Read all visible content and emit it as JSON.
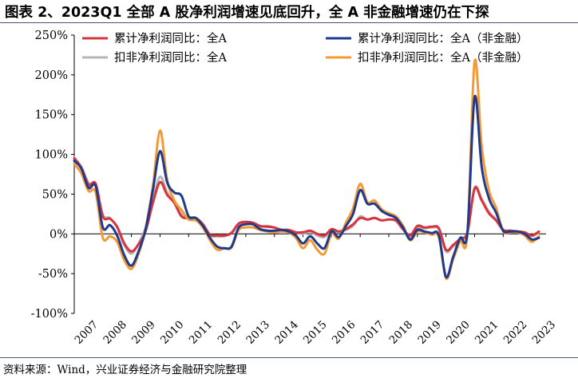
{
  "title": "图表 2、2023Q1 全部 A 股净利润增速见底回升，全 A 非金融增速仍在下探",
  "source": "资料来源：Wind，兴业证券经济与金融研究院整理",
  "colors": {
    "red": "#d8343e",
    "navy": "#1f3a8c",
    "gray": "#b5b5b5",
    "orange": "#f39a35"
  },
  "chart_data": {
    "type": "line",
    "title": "",
    "xlabel": "",
    "ylabel": "",
    "ylim": [
      -100,
      250
    ],
    "yticks": [
      250,
      200,
      150,
      100,
      50,
      0,
      -50,
      -100
    ],
    "ytick_labels": [
      "250%",
      "200%",
      "150%",
      "100%",
      "50%",
      "0%",
      "-50%",
      "-100%"
    ],
    "xlim": [
      2007,
      2023.5
    ],
    "xticks": [
      "2007",
      "2008",
      "2009",
      "2010",
      "2011",
      "2012",
      "2013",
      "2014",
      "2015",
      "2016",
      "2017",
      "2018",
      "2019",
      "2020",
      "2021",
      "2022",
      "2023"
    ],
    "series": [
      {
        "name": "累计净利润同比：全A",
        "color": "#d8343e",
        "x": [
          2007.0,
          2007.25,
          2007.5,
          2007.75,
          2008.0,
          2008.25,
          2008.5,
          2008.75,
          2009.0,
          2009.25,
          2009.5,
          2009.75,
          2010.0,
          2010.25,
          2010.5,
          2010.75,
          2011.0,
          2011.25,
          2011.5,
          2011.75,
          2012.0,
          2012.25,
          2012.5,
          2012.75,
          2013.0,
          2013.25,
          2013.5,
          2013.75,
          2014.0,
          2014.25,
          2014.5,
          2014.75,
          2015.0,
          2015.25,
          2015.5,
          2015.75,
          2016.0,
          2016.25,
          2016.5,
          2016.75,
          2017.0,
          2017.25,
          2017.5,
          2017.75,
          2018.0,
          2018.25,
          2018.5,
          2018.75,
          2019.0,
          2019.25,
          2019.5,
          2019.75,
          2020.0,
          2020.25,
          2020.5,
          2020.75,
          2021.0,
          2021.25,
          2021.5,
          2021.75,
          2022.0,
          2022.25,
          2022.5,
          2022.75,
          2023.0,
          2023.25
        ],
        "values": [
          95,
          83,
          62,
          63,
          22,
          19,
          9,
          -12,
          -22,
          -13,
          4,
          39,
          65,
          49,
          39,
          22,
          20,
          20,
          12,
          -1,
          -2,
          -2,
          1,
          13,
          15,
          14,
          10,
          9,
          8,
          5,
          5,
          2,
          2,
          4,
          0,
          -2,
          6,
          3,
          6,
          12,
          20,
          18,
          20,
          17,
          18,
          17,
          6,
          -2,
          10,
          8,
          9,
          7,
          -20,
          -14,
          -6,
          2,
          57,
          42,
          26,
          17,
          5,
          4,
          3,
          2,
          -2,
          3
        ]
      },
      {
        "name": "累计净利润同比：全A（非金融）",
        "color": "#1f3a8c",
        "x": [
          2007.0,
          2007.25,
          2007.5,
          2007.75,
          2008.0,
          2008.25,
          2008.5,
          2008.75,
          2009.0,
          2009.25,
          2009.5,
          2009.75,
          2010.0,
          2010.25,
          2010.5,
          2010.75,
          2011.0,
          2011.25,
          2011.5,
          2011.75,
          2012.0,
          2012.25,
          2012.5,
          2012.75,
          2013.0,
          2013.25,
          2013.5,
          2013.75,
          2014.0,
          2014.25,
          2014.5,
          2014.75,
          2015.0,
          2015.25,
          2015.5,
          2015.75,
          2016.0,
          2016.25,
          2016.5,
          2016.75,
          2017.0,
          2017.25,
          2017.5,
          2017.75,
          2018.0,
          2018.25,
          2018.5,
          2018.75,
          2019.0,
          2019.25,
          2019.5,
          2019.75,
          2020.0,
          2020.25,
          2020.5,
          2020.75,
          2021.0,
          2021.25,
          2021.5,
          2021.75,
          2022.0,
          2022.25,
          2022.5,
          2022.75,
          2023.0,
          2023.25
        ],
        "values": [
          92,
          82,
          58,
          60,
          8,
          11,
          -2,
          -27,
          -40,
          -22,
          6,
          55,
          104,
          65,
          52,
          48,
          22,
          20,
          10,
          -5,
          -16,
          -18,
          -16,
          8,
          12,
          12,
          6,
          4,
          4,
          5,
          3,
          -2,
          -12,
          -3,
          -12,
          -18,
          3,
          -4,
          10,
          25,
          55,
          38,
          38,
          29,
          24,
          20,
          8,
          -7,
          5,
          3,
          1,
          -2,
          -54,
          -29,
          -5,
          2,
          172,
          84,
          45,
          27,
          4,
          3,
          3,
          0,
          -7,
          -5
        ]
      },
      {
        "name": "扣非净利润同比：全A",
        "color": "#b5b5b5",
        "x": [
          2007.0,
          2007.25,
          2007.5,
          2007.75,
          2008.0,
          2008.25,
          2008.5,
          2008.75,
          2009.0,
          2009.25,
          2009.5,
          2009.75,
          2010.0,
          2010.25,
          2010.5,
          2010.75,
          2011.0,
          2011.25,
          2011.5,
          2011.75,
          2012.0,
          2012.25,
          2012.5,
          2012.75,
          2013.0,
          2013.25,
          2013.5,
          2013.75,
          2014.0,
          2014.25,
          2014.5,
          2014.75,
          2015.0,
          2015.25,
          2015.5,
          2015.75,
          2016.0,
          2016.25,
          2016.5,
          2016.75,
          2017.0,
          2017.25,
          2017.5,
          2017.75,
          2018.0,
          2018.25,
          2018.5,
          2018.75,
          2019.0,
          2019.25,
          2019.5,
          2019.75,
          2020.0,
          2020.25,
          2020.5,
          2020.75,
          2021.0,
          2021.25,
          2021.5,
          2021.75,
          2022.0,
          2022.25,
          2022.5,
          2022.75,
          2023.0,
          2023.25
        ],
        "values": [
          96,
          84,
          64,
          61,
          24,
          20,
          8,
          -14,
          -25,
          -12,
          8,
          42,
          72,
          52,
          40,
          24,
          21,
          20,
          12,
          -2,
          -3,
          -3,
          2,
          13,
          15,
          13,
          9,
          10,
          8,
          5,
          5,
          2,
          0,
          3,
          -2,
          -4,
          4,
          2,
          5,
          10,
          22,
          18,
          20,
          17,
          18,
          16,
          5,
          -4,
          8,
          7,
          8,
          6,
          -22,
          -16,
          -8,
          1,
          58,
          44,
          28,
          18,
          5,
          4,
          3,
          1,
          -3,
          2
        ]
      },
      {
        "name": "扣非净利润同比：全A（非金融）",
        "color": "#f39a35",
        "x": [
          2007.0,
          2007.25,
          2007.5,
          2007.75,
          2008.0,
          2008.25,
          2008.5,
          2008.75,
          2009.0,
          2009.25,
          2009.5,
          2009.75,
          2010.0,
          2010.25,
          2010.5,
          2010.75,
          2011.0,
          2011.25,
          2011.5,
          2011.75,
          2012.0,
          2012.25,
          2012.5,
          2012.75,
          2013.0,
          2013.25,
          2013.5,
          2013.75,
          2014.0,
          2014.25,
          2014.5,
          2014.75,
          2015.0,
          2015.25,
          2015.5,
          2015.75,
          2016.0,
          2016.25,
          2016.5,
          2016.75,
          2017.0,
          2017.25,
          2017.5,
          2017.75,
          2018.0,
          2018.25,
          2018.5,
          2018.75,
          2019.0,
          2019.25,
          2019.5,
          2019.75,
          2020.0,
          2020.25,
          2020.5,
          2020.75,
          2021.0,
          2021.25,
          2021.5,
          2021.75,
          2022.0,
          2022.25,
          2022.5,
          2022.75,
          2023.0,
          2023.25
        ],
        "values": [
          88,
          76,
          54,
          52,
          -5,
          -3,
          -10,
          -33,
          -44,
          -25,
          8,
          60,
          130,
          68,
          42,
          30,
          18,
          17,
          8,
          -8,
          -20,
          -18,
          -17,
          5,
          8,
          8,
          5,
          3,
          2,
          3,
          2,
          -5,
          -18,
          -8,
          -20,
          -25,
          0,
          -6,
          14,
          32,
          63,
          40,
          42,
          31,
          26,
          22,
          10,
          -8,
          3,
          2,
          -1,
          -4,
          -56,
          -32,
          -9,
          0,
          217,
          110,
          55,
          33,
          3,
          2,
          2,
          -2,
          -10,
          -3
        ]
      }
    ]
  }
}
